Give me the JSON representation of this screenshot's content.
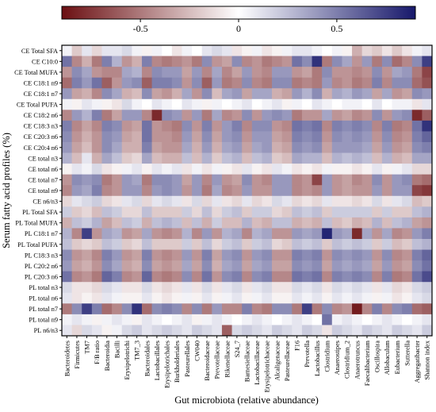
{
  "chart_data": {
    "type": "heatmap",
    "xlabel": "Gut microbiota (relative abundance)",
    "ylabel": "Serum fatty acid profiles (%)",
    "colorbar": {
      "range": [
        -0.9,
        0.9
      ],
      "ticks": [
        {
          "value": -0.5,
          "label": "-0.5"
        },
        {
          "value": 0,
          "label": "0"
        },
        {
          "value": 0.5,
          "label": "0.5"
        }
      ],
      "colors": {
        "negative": "#6b0f12",
        "zero": "#ffffff",
        "positive": "#17186b"
      }
    },
    "rows": [
      "CE Total SFA",
      "CE C10:0",
      "CE Total MUFA",
      "CE C18:1 n9",
      "CE C18:1 n7",
      "CE Total PUFA",
      "CE C18:2 n6",
      "CE C18:3 n3",
      "CE C20:3 n6",
      "CE C20:4 n6",
      "CE total n3",
      "CE total n6",
      "CE total n7",
      "CE total n9",
      "CE n6/n3",
      "PL Total SFA",
      "PL Total MUFA",
      "PL C18:1 n7",
      "PL Total PUFA",
      "PL C18:3 n3",
      "PL C20:2 n6",
      "PL C20:3 n6",
      "PL total n3",
      "PL total n6",
      "PL total n7",
      "PL total n9",
      "PL n6/n3"
    ],
    "columns": [
      "Bacteroidetes",
      "Firmicutes",
      "TM7",
      "F/B ratio",
      "Bacteroidia",
      "Bacilli",
      "Erysipelotrichi",
      "TM7_3",
      "Bacteroidales",
      "Lactobacillales",
      "Erysipelotrichales",
      "Burkholderiales",
      "Pasteurellales",
      "CW040",
      "Bacteroidaceae",
      "Prevotellaceae",
      "Rikenellaceae",
      "S24_7",
      "Barnesiellaceae",
      "Lactobacillaceae",
      "Erysipelotrichaceae",
      "Alcaligenaceae",
      "Pasteurellaceae",
      "F16",
      "Prevotella",
      "Lactobacillus",
      "Clostridium",
      "Anaerostipes",
      "Clostridium_2",
      "Anaerotruncus",
      "Faecalibacterium",
      "Oscillospira",
      "Allobaculum",
      "Eubacterium",
      "Sutterella",
      "Aggregatibacter",
      "Shannon index"
    ],
    "values": [
      [
        0.05,
        -0.2,
        0.1,
        -0.15,
        0.1,
        0.1,
        0.15,
        0.05,
        -0.05,
        0.05,
        0.0,
        -0.1,
        0.05,
        0.0,
        0.1,
        0.15,
        0.1,
        -0.1,
        -0.05,
        0.05,
        -0.1,
        -0.05,
        0.05,
        0.1,
        0.1,
        0.05,
        0.0,
        0.05,
        -0.05,
        -0.3,
        -0.15,
        -0.2,
        -0.1,
        -0.2,
        -0.1,
        0.05,
        0.1
      ],
      [
        0.55,
        -0.45,
        -0.3,
        -0.5,
        0.5,
        0.3,
        -0.4,
        -0.3,
        0.5,
        -0.45,
        -0.5,
        -0.45,
        -0.4,
        -0.5,
        0.45,
        -0.4,
        -0.35,
        0.45,
        -0.45,
        -0.4,
        -0.5,
        -0.45,
        -0.4,
        0.55,
        0.45,
        0.8,
        -0.5,
        0.45,
        0.35,
        -0.4,
        0.4,
        -0.5,
        0.45,
        -0.55,
        -0.45,
        0.45,
        0.75
      ],
      [
        -0.4,
        0.45,
        0.35,
        -0.4,
        -0.45,
        -0.45,
        0.35,
        0.3,
        -0.45,
        0.45,
        0.4,
        0.4,
        -0.35,
        0.4,
        -0.45,
        0.35,
        -0.45,
        -0.35,
        0.4,
        -0.4,
        -0.45,
        0.4,
        0.4,
        -0.4,
        -0.35,
        -0.5,
        0.45,
        -0.4,
        -0.4,
        -0.45,
        -0.4,
        0.45,
        -0.4,
        0.35,
        0.4,
        -0.5,
        -0.7
      ],
      [
        -0.55,
        0.5,
        0.4,
        0.55,
        -0.6,
        -0.4,
        0.4,
        0.45,
        -0.6,
        0.5,
        0.5,
        0.45,
        -0.4,
        0.45,
        -0.6,
        0.4,
        -0.5,
        -0.45,
        0.45,
        -0.45,
        -0.5,
        0.45,
        0.45,
        -0.5,
        -0.45,
        -0.5,
        0.4,
        -0.45,
        -0.4,
        -0.5,
        -0.45,
        0.5,
        -0.45,
        0.45,
        0.45,
        -0.55,
        -0.65
      ],
      [
        0.4,
        -0.35,
        -0.3,
        -0.45,
        0.45,
        0.35,
        -0.3,
        -0.25,
        0.45,
        -0.35,
        -0.4,
        -0.3,
        0.35,
        -0.4,
        0.45,
        -0.25,
        0.35,
        0.4,
        -0.35,
        0.35,
        0.35,
        -0.3,
        -0.35,
        0.4,
        0.3,
        0.45,
        -0.3,
        0.35,
        0.3,
        0.4,
        0.35,
        -0.35,
        0.35,
        -0.4,
        -0.35,
        0.45,
        0.4
      ],
      [
        0.05,
        -0.05,
        0.1,
        0.05,
        -0.05,
        -0.1,
        0.15,
        0.05,
        0.0,
        0.1,
        0.05,
        0.0,
        0.1,
        0.05,
        -0.05,
        0.05,
        0.0,
        0.05,
        0.1,
        0.0,
        0.05,
        0.1,
        -0.05,
        0.05,
        0.0,
        0.1,
        0.05,
        0.0,
        0.05,
        0.05,
        0.0,
        0.1,
        0.0,
        0.05,
        0.05,
        -0.1,
        0.1
      ],
      [
        -0.45,
        0.4,
        0.3,
        0.5,
        -0.5,
        -0.35,
        0.4,
        0.4,
        -0.45,
        -0.8,
        0.45,
        0.4,
        -0.4,
        0.4,
        -0.5,
        0.35,
        -0.45,
        -0.4,
        0.45,
        -0.4,
        0.4,
        0.45,
        0.4,
        -0.5,
        -0.4,
        -0.4,
        0.35,
        -0.4,
        -0.35,
        -0.45,
        -0.4,
        0.45,
        -0.4,
        0.4,
        0.45,
        -0.8,
        -0.6
      ],
      [
        0.5,
        -0.45,
        -0.35,
        -0.45,
        0.5,
        0.45,
        -0.4,
        -0.35,
        0.55,
        -0.4,
        -0.45,
        -0.5,
        0.45,
        -0.4,
        0.5,
        -0.4,
        0.4,
        0.5,
        -0.45,
        0.45,
        0.45,
        -0.4,
        -0.45,
        0.55,
        0.5,
        0.55,
        -0.45,
        0.5,
        0.45,
        0.5,
        0.45,
        -0.45,
        0.5,
        -0.5,
        -0.45,
        0.55,
        0.8
      ],
      [
        0.45,
        -0.4,
        -0.3,
        -0.4,
        0.45,
        0.4,
        -0.35,
        -0.3,
        0.55,
        -0.4,
        -0.4,
        -0.45,
        0.4,
        -0.35,
        0.45,
        -0.35,
        0.4,
        0.45,
        -0.4,
        0.4,
        0.4,
        -0.35,
        -0.4,
        0.5,
        0.45,
        0.5,
        -0.4,
        0.45,
        0.4,
        0.45,
        0.4,
        -0.4,
        0.45,
        -0.45,
        -0.4,
        0.5,
        0.6
      ],
      [
        0.4,
        -0.35,
        -0.25,
        -0.4,
        0.45,
        0.35,
        -0.3,
        -0.3,
        0.5,
        -0.35,
        -0.4,
        -0.4,
        0.35,
        -0.3,
        0.4,
        -0.3,
        0.35,
        0.4,
        -0.35,
        0.35,
        0.4,
        -0.3,
        -0.35,
        0.45,
        0.4,
        0.45,
        -0.35,
        0.4,
        0.4,
        0.4,
        0.35,
        -0.35,
        0.4,
        -0.4,
        -0.35,
        0.45,
        0.5
      ],
      [
        0.3,
        -0.25,
        0.1,
        -0.3,
        0.35,
        0.25,
        -0.2,
        -0.15,
        0.35,
        -0.25,
        -0.3,
        -0.3,
        0.25,
        -0.25,
        0.3,
        -0.2,
        0.25,
        0.3,
        -0.25,
        0.25,
        0.3,
        -0.2,
        -0.25,
        0.35,
        0.3,
        0.3,
        -0.25,
        0.3,
        0.25,
        0.3,
        0.25,
        -0.25,
        0.3,
        -0.3,
        -0.25,
        0.35,
        0.35
      ],
      [
        -0.05,
        0.1,
        0.05,
        0.15,
        -0.1,
        -0.05,
        0.05,
        0.1,
        -0.05,
        0.1,
        0.05,
        0.1,
        -0.1,
        0.05,
        -0.1,
        0.05,
        -0.05,
        -0.1,
        0.1,
        -0.05,
        -0.1,
        0.1,
        0.05,
        -0.1,
        -0.05,
        -0.1,
        0.05,
        -0.05,
        -0.05,
        -0.1,
        -0.05,
        0.1,
        -0.05,
        0.05,
        0.1,
        -0.15,
        -0.15
      ],
      [
        -0.4,
        0.45,
        0.4,
        0.45,
        -0.5,
        -0.4,
        0.4,
        0.35,
        -0.5,
        0.45,
        0.45,
        0.4,
        -0.35,
        0.4,
        -0.45,
        0.4,
        -0.4,
        -0.35,
        0.45,
        -0.4,
        -0.45,
        0.4,
        0.4,
        -0.45,
        -0.4,
        -0.7,
        0.4,
        -0.4,
        -0.35,
        -0.45,
        -0.4,
        0.45,
        -0.4,
        0.4,
        0.45,
        -0.5,
        -0.55
      ],
      [
        -0.45,
        0.4,
        0.35,
        0.5,
        -0.45,
        -0.4,
        0.4,
        0.4,
        -0.45,
        0.4,
        0.45,
        0.4,
        -0.4,
        0.4,
        -0.5,
        0.35,
        -0.45,
        -0.4,
        0.4,
        -0.4,
        -0.4,
        0.4,
        0.4,
        -0.45,
        -0.4,
        -0.45,
        0.4,
        -0.4,
        -0.35,
        -0.4,
        -0.4,
        0.4,
        -0.4,
        0.4,
        0.4,
        -0.7,
        -0.75
      ],
      [
        -0.15,
        0.1,
        0.15,
        0.2,
        -0.15,
        -0.1,
        0.1,
        0.15,
        -0.15,
        0.1,
        0.15,
        0.1,
        -0.1,
        0.15,
        -0.15,
        0.1,
        -0.1,
        -0.15,
        0.1,
        -0.15,
        -0.1,
        0.15,
        0.1,
        -0.15,
        -0.1,
        -0.15,
        0.1,
        -0.1,
        -0.1,
        -0.15,
        -0.1,
        0.15,
        -0.1,
        0.1,
        0.15,
        -0.25,
        -0.2
      ],
      [
        0.2,
        -0.2,
        -0.15,
        -0.25,
        0.25,
        0.2,
        -0.15,
        -0.15,
        0.25,
        -0.2,
        -0.2,
        -0.2,
        0.2,
        -0.15,
        0.25,
        -0.15,
        0.2,
        0.25,
        -0.2,
        0.2,
        0.2,
        -0.15,
        -0.2,
        0.25,
        0.2,
        0.25,
        -0.2,
        0.2,
        0.2,
        0.2,
        0.2,
        -0.2,
        0.2,
        -0.2,
        -0.2,
        0.25,
        0.3
      ],
      [
        -0.3,
        0.25,
        0.2,
        0.3,
        -0.35,
        -0.25,
        0.25,
        0.2,
        -0.3,
        0.25,
        0.3,
        0.25,
        -0.25,
        0.25,
        -0.3,
        0.2,
        -0.25,
        -0.25,
        0.3,
        -0.25,
        -0.3,
        0.25,
        0.25,
        -0.3,
        -0.25,
        -0.3,
        0.25,
        -0.25,
        -0.2,
        -0.3,
        -0.25,
        0.3,
        -0.25,
        0.25,
        0.3,
        -0.35,
        -0.4
      ],
      [
        0.3,
        -0.45,
        0.75,
        -0.4,
        0.35,
        0.3,
        -0.4,
        -0.35,
        0.35,
        -0.4,
        -0.45,
        -0.4,
        0.3,
        -0.45,
        0.4,
        -0.4,
        0.3,
        0.35,
        -0.45,
        0.3,
        0.35,
        -0.4,
        -0.4,
        0.4,
        0.35,
        0.4,
        0.85,
        0.4,
        0.35,
        -0.8,
        0.35,
        -0.4,
        0.35,
        -0.45,
        -0.4,
        0.4,
        0.5
      ],
      [
        0.25,
        -0.2,
        -0.15,
        -0.2,
        0.25,
        0.2,
        -0.2,
        -0.15,
        0.25,
        -0.2,
        -0.2,
        -0.2,
        0.2,
        -0.2,
        0.25,
        -0.15,
        0.2,
        0.25,
        -0.2,
        0.2,
        0.25,
        -0.15,
        -0.2,
        0.25,
        0.2,
        0.25,
        -0.2,
        0.25,
        0.2,
        0.25,
        0.2,
        -0.2,
        0.2,
        -0.25,
        -0.2,
        0.25,
        0.3
      ],
      [
        0.45,
        -0.4,
        -0.35,
        -0.45,
        0.5,
        0.4,
        -0.4,
        -0.35,
        0.5,
        -0.4,
        -0.45,
        -0.4,
        0.4,
        -0.4,
        0.5,
        -0.35,
        0.4,
        0.45,
        -0.4,
        0.4,
        0.45,
        -0.4,
        -0.4,
        0.5,
        0.45,
        0.5,
        -0.4,
        0.45,
        0.4,
        0.45,
        0.4,
        -0.4,
        0.45,
        -0.45,
        -0.4,
        0.5,
        0.6
      ],
      [
        0.4,
        -0.35,
        -0.3,
        -0.4,
        0.45,
        0.35,
        -0.35,
        -0.3,
        0.45,
        -0.35,
        -0.4,
        -0.35,
        0.35,
        -0.35,
        0.45,
        -0.3,
        0.35,
        0.4,
        -0.35,
        0.35,
        0.4,
        -0.35,
        -0.35,
        0.45,
        0.4,
        0.45,
        -0.35,
        0.4,
        0.35,
        0.4,
        0.35,
        -0.35,
        0.4,
        -0.4,
        -0.35,
        0.45,
        0.55
      ],
      [
        0.55,
        -0.45,
        -0.4,
        -0.5,
        0.6,
        0.5,
        -0.45,
        -0.4,
        0.6,
        -0.45,
        -0.5,
        -0.45,
        0.45,
        -0.45,
        0.55,
        -0.4,
        0.45,
        0.5,
        -0.45,
        0.45,
        0.5,
        -0.45,
        -0.45,
        0.55,
        0.5,
        0.55,
        -0.45,
        0.5,
        0.45,
        0.5,
        0.45,
        -0.45,
        0.5,
        -0.5,
        -0.45,
        0.55,
        0.7
      ],
      [
        0.15,
        -0.1,
        -0.1,
        -0.15,
        0.15,
        0.1,
        -0.1,
        -0.1,
        0.15,
        -0.1,
        -0.15,
        -0.1,
        0.1,
        -0.1,
        0.15,
        -0.1,
        0.1,
        0.15,
        -0.1,
        0.1,
        0.15,
        -0.1,
        -0.1,
        0.15,
        0.1,
        0.15,
        -0.1,
        0.15,
        0.1,
        0.15,
        0.1,
        -0.1,
        0.1,
        -0.15,
        -0.1,
        0.15,
        0.2
      ],
      [
        0.1,
        -0.1,
        -0.05,
        -0.1,
        0.1,
        0.05,
        -0.05,
        -0.05,
        0.1,
        -0.05,
        -0.1,
        -0.05,
        0.05,
        -0.05,
        0.1,
        -0.05,
        0.05,
        0.1,
        -0.05,
        0.05,
        0.1,
        -0.05,
        -0.05,
        0.1,
        0.05,
        0.1,
        -0.05,
        0.1,
        0.05,
        0.1,
        0.05,
        -0.05,
        0.05,
        -0.1,
        -0.05,
        0.1,
        0.15
      ],
      [
        -0.5,
        0.45,
        0.75,
        0.5,
        -0.55,
        -0.45,
        0.45,
        0.8,
        -0.55,
        0.45,
        0.5,
        0.45,
        -0.45,
        0.45,
        -0.5,
        0.4,
        -0.45,
        -0.45,
        0.5,
        -0.45,
        -0.5,
        0.45,
        0.45,
        -0.5,
        0.75,
        -0.5,
        0.45,
        -0.45,
        -0.4,
        -0.85,
        -0.45,
        0.5,
        -0.45,
        0.45,
        0.5,
        -0.55,
        -0.6
      ],
      [
        0.05,
        0.1,
        0.05,
        -0.05,
        0.05,
        0.1,
        0.05,
        -0.05,
        0.1,
        0.05,
        0.0,
        0.05,
        0.1,
        -0.05,
        0.05,
        0.1,
        0.05,
        0.0,
        0.05,
        0.1,
        0.05,
        0.0,
        0.05,
        0.1,
        0.05,
        0.0,
        0.55,
        0.05,
        0.1,
        0.05,
        0.0,
        0.05,
        0.1,
        0.05,
        0.0,
        0.05,
        0.1
      ],
      [
        0.1,
        -0.15,
        0.15,
        0.1,
        -0.05,
        0.05,
        0.15,
        0.2,
        0.1,
        0.15,
        0.2,
        0.15,
        0.1,
        0.2,
        0.15,
        0.1,
        -0.6,
        0.15,
        0.2,
        0.15,
        0.1,
        0.2,
        0.15,
        0.1,
        0.2,
        0.15,
        -0.1,
        0.2,
        0.15,
        0.1,
        0.2,
        0.15,
        0.1,
        0.2,
        0.15,
        0.1,
        0.2
      ]
    ]
  }
}
